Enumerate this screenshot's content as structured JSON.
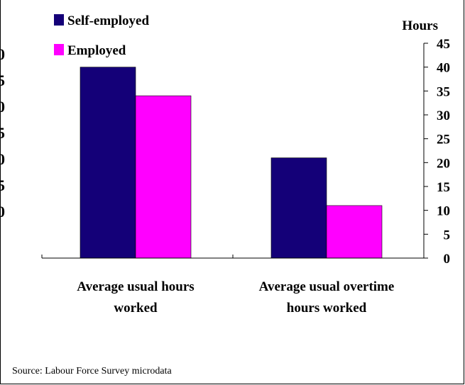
{
  "chart_data": {
    "type": "bar",
    "categories": [
      [
        "Average usual hours",
        "worked"
      ],
      [
        "Average usual overtime",
        "hours worked"
      ]
    ],
    "series": [
      {
        "name": "Self-employed",
        "color": "#140078",
        "values": [
          40,
          21
        ]
      },
      {
        "name": "Employed",
        "color": "#ff00ff",
        "values": [
          34,
          11
        ]
      }
    ],
    "ylabel": "Hours",
    "ylim": [
      0,
      45
    ],
    "yticks": [
      0,
      5,
      10,
      15,
      20,
      25,
      30,
      35,
      40,
      45
    ],
    "left_axis_partial_labels": [
      "0",
      "5",
      "0",
      "5",
      "0",
      "5",
      "0"
    ],
    "legend_position": "top-left",
    "grid": false
  },
  "source_note": "Source: Labour Force Survey microdata"
}
